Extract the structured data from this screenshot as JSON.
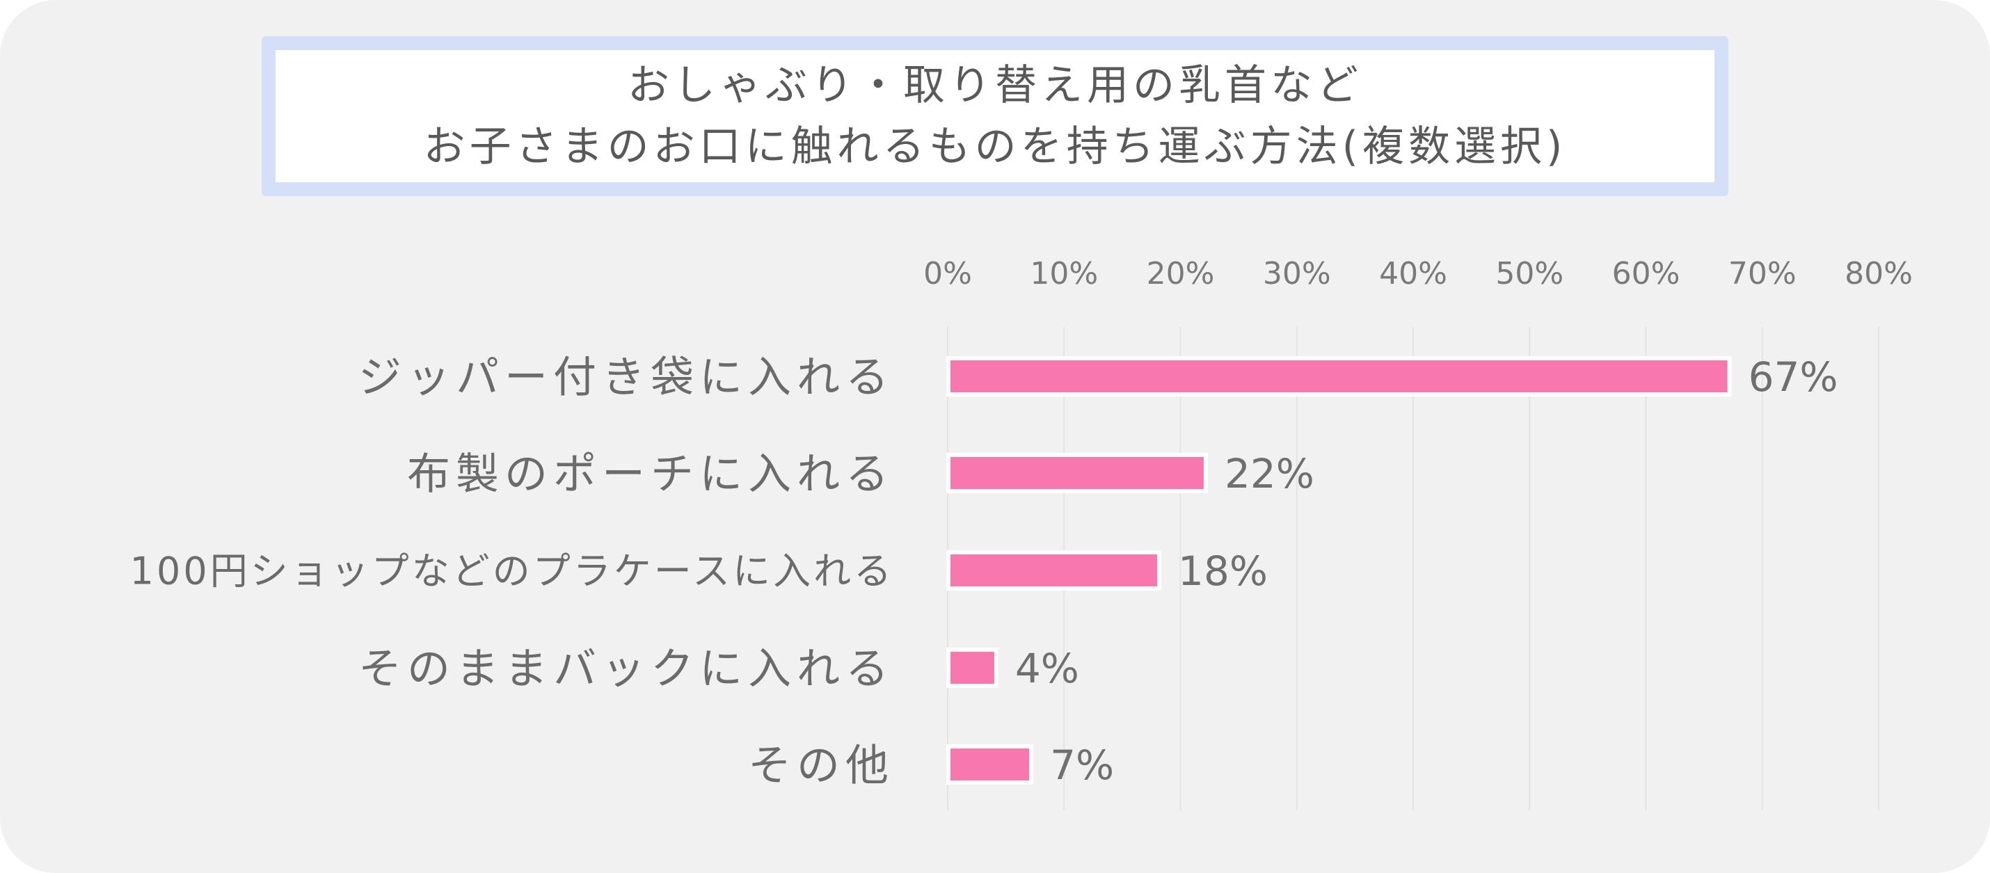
{
  "title": {
    "line1": "おしゃぶり・取り替え用の乳首など",
    "line2": "お子さまのお口に触れるものを持ち運ぶ方法(複数選択)"
  },
  "colors": {
    "background": "#f1f1f1",
    "title_border": "#d4e0f7",
    "bar": "#f877ae",
    "bar_outline": "#ffffff",
    "grid": "#e4e4e4"
  },
  "chart_data": {
    "type": "bar",
    "orientation": "horizontal",
    "title": "おしゃぶり・取り替え用の乳首など お子さまのお口に触れるものを持ち運ぶ方法(複数選択)",
    "categories": [
      "ジッパー付き袋に入れる",
      "布製のポーチに入れる",
      "100円ショップなどのプラケースに入れる",
      "そのままバックに入れる",
      "その他"
    ],
    "values": [
      67,
      22,
      18,
      4,
      7
    ],
    "value_labels": [
      "67%",
      "22%",
      "18%",
      "4%",
      "7%"
    ],
    "xlim": [
      0,
      80
    ],
    "xticks": [
      "0%",
      "10%",
      "20%",
      "30%",
      "40%",
      "50%",
      "60%",
      "70%",
      "80%"
    ],
    "xlabel": "",
    "ylabel": "",
    "grid": true,
    "legend": false
  }
}
